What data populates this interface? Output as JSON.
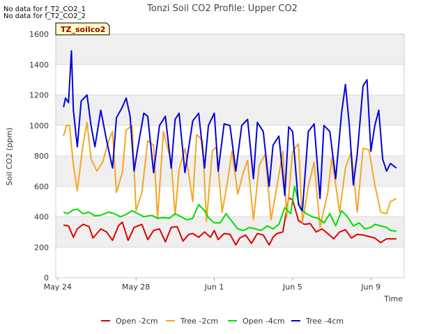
{
  "notes": [
    "No data for f_T2_CO2_1",
    "No data for f_T2_CO2_2"
  ],
  "badge": "TZ_soilco2",
  "chart_data": {
    "type": "line",
    "title": "Tonzi Soil CO2 Profile: Upper CO2",
    "xlabel": "Time",
    "ylabel": "Soil CO2 (ppm)",
    "xlim": [
      -0.1,
      17.7
    ],
    "ylim": [
      0,
      1600
    ],
    "xticks": [
      {
        "x": 0,
        "label": "May 24"
      },
      {
        "x": 4,
        "label": "May 28"
      },
      {
        "x": 8,
        "label": "Jun 1"
      },
      {
        "x": 12,
        "label": "Jun 5"
      },
      {
        "x": 16,
        "label": "Jun 9"
      }
    ],
    "yticks": [
      0,
      200,
      400,
      600,
      800,
      1000,
      1200,
      1400,
      1600
    ],
    "grid": true,
    "legend_position": "bottom",
    "series": [
      {
        "name": "Open -2cm",
        "color": "#dd0000",
        "x": [
          0.3,
          0.55,
          0.8,
          1.0,
          1.3,
          1.6,
          1.8,
          2.0,
          2.2,
          2.5,
          2.8,
          3.1,
          3.3,
          3.6,
          3.9,
          4.3,
          4.6,
          4.9,
          5.2,
          5.5,
          5.8,
          6.1,
          6.4,
          6.7,
          6.9,
          7.2,
          7.5,
          7.8,
          8.0,
          8.2,
          8.5,
          8.8,
          9.1,
          9.3,
          9.6,
          9.9,
          10.2,
          10.5,
          10.8,
          11.0,
          11.2,
          11.5,
          11.8,
          12.0,
          12.3,
          12.6,
          12.9,
          13.2,
          13.5,
          13.8,
          14.1,
          14.4,
          14.7,
          15.0,
          15.3,
          15.6,
          15.9,
          16.2,
          16.5,
          16.8,
          17.0,
          17.3
        ],
        "y": [
          345,
          340,
          265,
          320,
          350,
          335,
          260,
          290,
          320,
          300,
          245,
          340,
          365,
          245,
          330,
          350,
          250,
          310,
          320,
          235,
          330,
          335,
          240,
          285,
          290,
          265,
          300,
          265,
          310,
          250,
          290,
          285,
          215,
          260,
          280,
          225,
          290,
          280,
          215,
          265,
          290,
          300,
          525,
          510,
          375,
          350,
          355,
          300,
          320,
          290,
          255,
          300,
          315,
          260,
          285,
          280,
          270,
          260,
          230,
          255,
          255,
          255
        ]
      },
      {
        "name": "Tree -2cm",
        "color": "#f5a623",
        "x": [
          0.3,
          0.45,
          0.6,
          0.8,
          1.0,
          1.3,
          1.5,
          1.7,
          2.0,
          2.3,
          2.6,
          2.8,
          3.0,
          3.3,
          3.5,
          3.8,
          4.0,
          4.3,
          4.6,
          4.9,
          5.1,
          5.4,
          5.8,
          6.0,
          6.2,
          6.5,
          6.9,
          7.1,
          7.4,
          7.6,
          7.9,
          8.1,
          8.4,
          8.7,
          8.9,
          9.2,
          9.5,
          9.7,
          10.0,
          10.3,
          10.6,
          10.9,
          11.2,
          11.5,
          11.7,
          12.0,
          12.3,
          12.5,
          12.8,
          13.1,
          13.4,
          13.8,
          14.0,
          14.4,
          14.7,
          15.0,
          15.3,
          15.6,
          15.9,
          16.2,
          16.5,
          16.8,
          17.0,
          17.3
        ],
        "y": [
          930,
          1000,
          1000,
          740,
          570,
          880,
          1020,
          780,
          700,
          760,
          900,
          960,
          560,
          690,
          970,
          1000,
          440,
          560,
          900,
          870,
          390,
          960,
          760,
          410,
          710,
          850,
          500,
          940,
          900,
          370,
          830,
          860,
          430,
          650,
          830,
          550,
          700,
          770,
          380,
          740,
          810,
          380,
          600,
          830,
          400,
          830,
          880,
          360,
          600,
          760,
          330,
          560,
          790,
          430,
          720,
          830,
          430,
          850,
          840,
          610,
          430,
          420,
          500,
          520
        ]
      },
      {
        "name": "Open -4cm",
        "color": "#00dd00",
        "x": [
          0.3,
          0.5,
          0.8,
          1.0,
          1.3,
          1.6,
          1.9,
          2.2,
          2.6,
          2.9,
          3.2,
          3.5,
          3.8,
          4.1,
          4.4,
          4.8,
          5.1,
          5.4,
          5.7,
          6.0,
          6.3,
          6.6,
          6.9,
          7.2,
          7.5,
          7.7,
          8.0,
          8.3,
          8.6,
          8.9,
          9.2,
          9.5,
          9.8,
          10.1,
          10.4,
          10.7,
          11.0,
          11.3,
          11.6,
          11.9,
          12.1,
          12.4,
          12.7,
          13.0,
          13.3,
          13.6,
          13.9,
          14.2,
          14.5,
          14.8,
          15.1,
          15.4,
          15.7,
          16.0,
          16.2,
          16.5,
          16.8,
          17.0,
          17.3
        ],
        "y": [
          430,
          420,
          445,
          450,
          420,
          430,
          405,
          410,
          430,
          420,
          400,
          415,
          440,
          420,
          400,
          410,
          390,
          395,
          390,
          420,
          400,
          380,
          390,
          480,
          440,
          395,
          360,
          360,
          420,
          370,
          320,
          310,
          330,
          320,
          310,
          340,
          320,
          350,
          460,
          420,
          600,
          450,
          420,
          400,
          390,
          360,
          420,
          340,
          440,
          400,
          340,
          360,
          320,
          330,
          350,
          340,
          330,
          310,
          305
        ]
      },
      {
        "name": "Tree -4cm",
        "color": "#0000dd",
        "x": [
          0.3,
          0.4,
          0.55,
          0.7,
          0.8,
          1.0,
          1.2,
          1.5,
          1.7,
          1.9,
          2.2,
          2.5,
          2.8,
          3.0,
          3.3,
          3.5,
          3.7,
          3.9,
          4.1,
          4.4,
          4.6,
          4.9,
          5.2,
          5.5,
          5.8,
          6.0,
          6.2,
          6.5,
          6.9,
          7.2,
          7.5,
          7.7,
          8.0,
          8.2,
          8.5,
          8.8,
          9.1,
          9.4,
          9.7,
          10.0,
          10.2,
          10.5,
          10.8,
          11.0,
          11.3,
          11.6,
          11.8,
          12.0,
          12.3,
          12.5,
          12.8,
          13.1,
          13.4,
          13.6,
          13.9,
          14.2,
          14.5,
          14.7,
          14.9,
          15.1,
          15.3,
          15.6,
          15.8,
          16.0,
          16.2,
          16.4,
          16.6,
          16.8,
          17.0,
          17.3
        ],
        "y": [
          1120,
          1180,
          1150,
          1490,
          1100,
          860,
          1160,
          1200,
          1000,
          860,
          1100,
          900,
          720,
          1050,
          1120,
          1180,
          1060,
          700,
          860,
          1080,
          1060,
          690,
          1000,
          1060,
          720,
          1040,
          1080,
          690,
          1030,
          1080,
          720,
          1000,
          1080,
          700,
          1010,
          1000,
          700,
          1000,
          1040,
          650,
          1020,
          960,
          600,
          870,
          930,
          540,
          990,
          960,
          480,
          440,
          960,
          1010,
          520,
          1000,
          960,
          650,
          1080,
          1270,
          1000,
          610,
          810,
          1260,
          1300,
          830,
          1000,
          1100,
          780,
          700,
          750,
          720
        ]
      }
    ]
  }
}
